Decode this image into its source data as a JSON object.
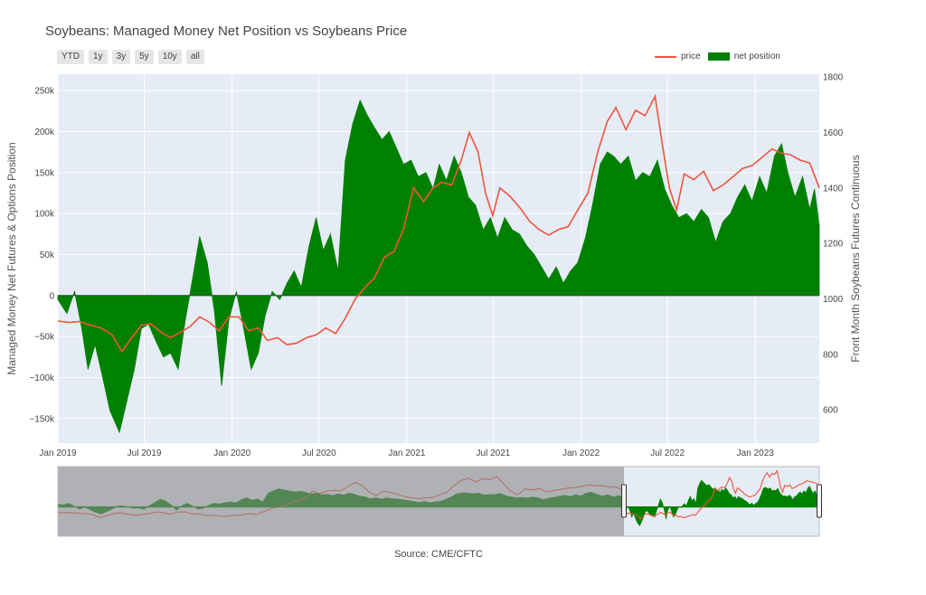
{
  "colors": {
    "plot_bg": "#e5ecf6",
    "grid": "#ffffff",
    "price": "#ef553b",
    "net_position": "#008000",
    "slider_mask": "#8a8a8a"
  },
  "range_buttons": [
    "YTD",
    "1y",
    "3y",
    "5y",
    "10y",
    "all"
  ],
  "source_label": "Source: CME/CFTC",
  "chart_data": {
    "type": "area",
    "title": "Soybeans: Managed Money Net Position vs Soybeans Price",
    "ylabel": "Managed Money Net Futures & Options Position",
    "y2label": "Front Month Soybeans Futures Continuous",
    "ylim": [
      -180000,
      270000
    ],
    "y2lim": [
      480,
      1810
    ],
    "xlim": [
      "2019-01-01",
      "2023-05-15"
    ],
    "x_tick_labels": [
      "Jan 2019",
      "Jul 2019",
      "Jan 2020",
      "Jul 2020",
      "Jan 2021",
      "Jul 2021",
      "Jan 2022",
      "Jul 2022",
      "Jan 2023"
    ],
    "x_tick_dates": [
      "2019-01-01",
      "2019-07-01",
      "2020-01-01",
      "2020-07-01",
      "2021-01-01",
      "2021-07-01",
      "2022-01-01",
      "2022-07-01",
      "2023-01-01"
    ],
    "y_ticks": [
      -150000,
      -100000,
      -50000,
      0,
      50000,
      100000,
      150000,
      200000,
      250000
    ],
    "y_tick_labels": [
      "−150k",
      "−100k",
      "−50k",
      "0",
      "50k",
      "100k",
      "150k",
      "200k",
      "250k"
    ],
    "y2_ticks": [
      600,
      800,
      1000,
      1200,
      1400,
      1600,
      1800
    ],
    "legend": [
      "price",
      "net position"
    ],
    "legend_position": "top-right",
    "grid": true,
    "series": [
      {
        "name": "net position",
        "kind": "area",
        "points": [
          [
            "2019-01-01",
            -5000
          ],
          [
            "2019-01-20",
            -22000
          ],
          [
            "2019-02-05",
            5000
          ],
          [
            "2019-02-20",
            -40000
          ],
          [
            "2019-03-05",
            -90000
          ],
          [
            "2019-03-20",
            -60000
          ],
          [
            "2019-04-05",
            -100000
          ],
          [
            "2019-04-20",
            -140000
          ],
          [
            "2019-05-10",
            -167000
          ],
          [
            "2019-05-25",
            -130000
          ],
          [
            "2019-06-10",
            -90000
          ],
          [
            "2019-06-25",
            -40000
          ],
          [
            "2019-07-10",
            -35000
          ],
          [
            "2019-07-25",
            -55000
          ],
          [
            "2019-08-10",
            -75000
          ],
          [
            "2019-08-25",
            -70000
          ],
          [
            "2019-09-10",
            -90000
          ],
          [
            "2019-09-25",
            -30000
          ],
          [
            "2019-10-10",
            20000
          ],
          [
            "2019-10-25",
            72000
          ],
          [
            "2019-11-10",
            40000
          ],
          [
            "2019-11-25",
            -20000
          ],
          [
            "2019-12-10",
            -110000
          ],
          [
            "2019-12-25",
            -30000
          ],
          [
            "2020-01-10",
            5000
          ],
          [
            "2020-01-25",
            -40000
          ],
          [
            "2020-02-10",
            -90000
          ],
          [
            "2020-02-25",
            -70000
          ],
          [
            "2020-03-10",
            -25000
          ],
          [
            "2020-03-25",
            5000
          ],
          [
            "2020-04-10",
            -5000
          ],
          [
            "2020-04-25",
            15000
          ],
          [
            "2020-05-10",
            30000
          ],
          [
            "2020-05-25",
            10000
          ],
          [
            "2020-06-10",
            60000
          ],
          [
            "2020-06-25",
            95000
          ],
          [
            "2020-07-10",
            55000
          ],
          [
            "2020-07-25",
            75000
          ],
          [
            "2020-08-10",
            30000
          ],
          [
            "2020-08-25",
            165000
          ],
          [
            "2020-09-10",
            210000
          ],
          [
            "2020-09-25",
            238000
          ],
          [
            "2020-10-10",
            220000
          ],
          [
            "2020-10-25",
            205000
          ],
          [
            "2020-11-10",
            190000
          ],
          [
            "2020-11-25",
            200000
          ],
          [
            "2020-12-10",
            180000
          ],
          [
            "2020-12-25",
            160000
          ],
          [
            "2021-01-10",
            165000
          ],
          [
            "2021-01-25",
            145000
          ],
          [
            "2021-02-10",
            150000
          ],
          [
            "2021-02-25",
            130000
          ],
          [
            "2021-03-10",
            160000
          ],
          [
            "2021-03-25",
            140000
          ],
          [
            "2021-04-10",
            170000
          ],
          [
            "2021-04-25",
            150000
          ],
          [
            "2021-05-10",
            120000
          ],
          [
            "2021-05-25",
            110000
          ],
          [
            "2021-06-10",
            80000
          ],
          [
            "2021-06-25",
            95000
          ],
          [
            "2021-07-10",
            70000
          ],
          [
            "2021-07-25",
            95000
          ],
          [
            "2021-08-10",
            80000
          ],
          [
            "2021-08-25",
            75000
          ],
          [
            "2021-09-10",
            60000
          ],
          [
            "2021-09-25",
            50000
          ],
          [
            "2021-10-10",
            35000
          ],
          [
            "2021-10-25",
            20000
          ],
          [
            "2021-11-10",
            35000
          ],
          [
            "2021-11-25",
            15000
          ],
          [
            "2021-12-10",
            30000
          ],
          [
            "2021-12-25",
            40000
          ],
          [
            "2022-01-10",
            70000
          ],
          [
            "2022-01-25",
            110000
          ],
          [
            "2022-02-10",
            160000
          ],
          [
            "2022-02-25",
            175000
          ],
          [
            "2022-03-10",
            170000
          ],
          [
            "2022-03-25",
            160000
          ],
          [
            "2022-04-10",
            170000
          ],
          [
            "2022-04-25",
            140000
          ],
          [
            "2022-05-10",
            150000
          ],
          [
            "2022-05-25",
            145000
          ],
          [
            "2022-06-10",
            165000
          ],
          [
            "2022-06-25",
            130000
          ],
          [
            "2022-07-10",
            110000
          ],
          [
            "2022-07-25",
            95000
          ],
          [
            "2022-08-10",
            100000
          ],
          [
            "2022-08-25",
            90000
          ],
          [
            "2022-09-10",
            105000
          ],
          [
            "2022-09-25",
            95000
          ],
          [
            "2022-10-10",
            65000
          ],
          [
            "2022-10-25",
            90000
          ],
          [
            "2022-11-10",
            100000
          ],
          [
            "2022-11-25",
            120000
          ],
          [
            "2022-12-10",
            135000
          ],
          [
            "2022-12-25",
            115000
          ],
          [
            "2023-01-10",
            145000
          ],
          [
            "2023-01-25",
            125000
          ],
          [
            "2023-02-10",
            170000
          ],
          [
            "2023-02-25",
            185000
          ],
          [
            "2023-03-10",
            150000
          ],
          [
            "2023-03-25",
            120000
          ],
          [
            "2023-04-10",
            145000
          ],
          [
            "2023-04-25",
            105000
          ],
          [
            "2023-05-05",
            130000
          ],
          [
            "2023-05-15",
            85000
          ]
        ]
      },
      {
        "name": "price",
        "kind": "line",
        "points": [
          [
            "2019-01-01",
            920
          ],
          [
            "2019-01-25",
            915
          ],
          [
            "2019-02-15",
            918
          ],
          [
            "2019-03-10",
            905
          ],
          [
            "2019-04-01",
            895
          ],
          [
            "2019-04-25",
            870
          ],
          [
            "2019-05-15",
            810
          ],
          [
            "2019-06-05",
            860
          ],
          [
            "2019-06-25",
            905
          ],
          [
            "2019-07-15",
            910
          ],
          [
            "2019-08-05",
            880
          ],
          [
            "2019-08-25",
            860
          ],
          [
            "2019-09-15",
            880
          ],
          [
            "2019-10-05",
            900
          ],
          [
            "2019-10-25",
            935
          ],
          [
            "2019-11-15",
            915
          ],
          [
            "2019-12-05",
            885
          ],
          [
            "2019-12-25",
            935
          ],
          [
            "2020-01-15",
            935
          ],
          [
            "2020-02-05",
            885
          ],
          [
            "2020-02-25",
            895
          ],
          [
            "2020-03-15",
            850
          ],
          [
            "2020-04-05",
            860
          ],
          [
            "2020-04-25",
            835
          ],
          [
            "2020-05-15",
            840
          ],
          [
            "2020-06-05",
            860
          ],
          [
            "2020-06-25",
            870
          ],
          [
            "2020-07-15",
            895
          ],
          [
            "2020-08-05",
            875
          ],
          [
            "2020-08-25",
            930
          ],
          [
            "2020-09-15",
            1000
          ],
          [
            "2020-10-05",
            1040
          ],
          [
            "2020-10-25",
            1075
          ],
          [
            "2020-11-15",
            1150
          ],
          [
            "2020-12-05",
            1170
          ],
          [
            "2020-12-25",
            1250
          ],
          [
            "2021-01-15",
            1400
          ],
          [
            "2021-02-05",
            1350
          ],
          [
            "2021-02-25",
            1400
          ],
          [
            "2021-03-15",
            1420
          ],
          [
            "2021-04-05",
            1410
          ],
          [
            "2021-04-25",
            1500
          ],
          [
            "2021-05-12",
            1600
          ],
          [
            "2021-05-30",
            1530
          ],
          [
            "2021-06-15",
            1380
          ],
          [
            "2021-06-30",
            1300
          ],
          [
            "2021-07-15",
            1400
          ],
          [
            "2021-08-05",
            1370
          ],
          [
            "2021-08-25",
            1330
          ],
          [
            "2021-09-15",
            1280
          ],
          [
            "2021-10-05",
            1250
          ],
          [
            "2021-10-25",
            1230
          ],
          [
            "2021-11-15",
            1250
          ],
          [
            "2021-12-05",
            1260
          ],
          [
            "2021-12-25",
            1320
          ],
          [
            "2022-01-15",
            1380
          ],
          [
            "2022-02-05",
            1530
          ],
          [
            "2022-02-25",
            1640
          ],
          [
            "2022-03-15",
            1690
          ],
          [
            "2022-04-05",
            1610
          ],
          [
            "2022-04-25",
            1680
          ],
          [
            "2022-05-15",
            1660
          ],
          [
            "2022-06-05",
            1730
          ],
          [
            "2022-06-20",
            1560
          ],
          [
            "2022-07-05",
            1400
          ],
          [
            "2022-07-20",
            1320
          ],
          [
            "2022-08-05",
            1450
          ],
          [
            "2022-08-25",
            1430
          ],
          [
            "2022-09-15",
            1460
          ],
          [
            "2022-10-05",
            1390
          ],
          [
            "2022-10-25",
            1410
          ],
          [
            "2022-11-15",
            1440
          ],
          [
            "2022-12-05",
            1470
          ],
          [
            "2022-12-25",
            1480
          ],
          [
            "2023-01-15",
            1510
          ],
          [
            "2023-02-05",
            1540
          ],
          [
            "2023-02-25",
            1525
          ],
          [
            "2023-03-15",
            1520
          ],
          [
            "2023-04-05",
            1500
          ],
          [
            "2023-04-25",
            1490
          ],
          [
            "2023-05-15",
            1400
          ]
        ]
      }
    ]
  }
}
